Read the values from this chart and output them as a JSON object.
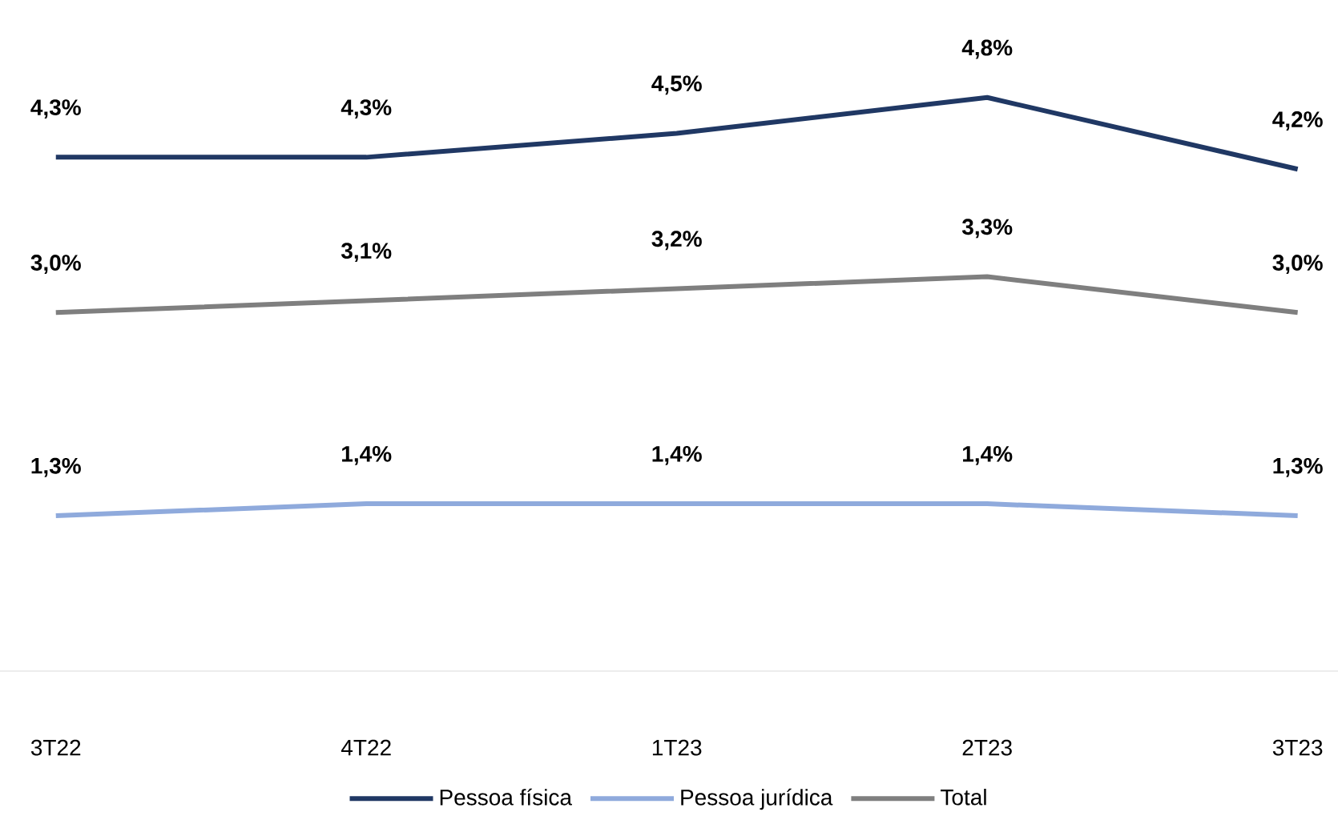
{
  "chart_data": {
    "type": "line",
    "categories": [
      "3T22",
      "4T22",
      "1T23",
      "2T23",
      "3T23"
    ],
    "series": [
      {
        "name": "Pessoa física",
        "color": "#203864",
        "values": [
          4.3,
          4.3,
          4.5,
          4.8,
          4.2
        ],
        "value_labels": [
          "4,3%",
          "4,3%",
          "4,5%",
          "4,8%",
          "4,2%"
        ]
      },
      {
        "name": "Pessoa jurídica",
        "color": "#8faadc",
        "values": [
          1.3,
          1.4,
          1.4,
          1.4,
          1.3
        ],
        "value_labels": [
          "1,3%",
          "1,4%",
          "1,4%",
          "1,4%",
          "1,3%"
        ]
      },
      {
        "name": "Total",
        "color": "#7f7f7f",
        "values": [
          3.0,
          3.1,
          3.2,
          3.3,
          3.0
        ],
        "value_labels": [
          "3,0%",
          "3,1%",
          "3,2%",
          "3,3%",
          "3,0%"
        ]
      }
    ],
    "marker": "none",
    "legend": "bottom"
  }
}
